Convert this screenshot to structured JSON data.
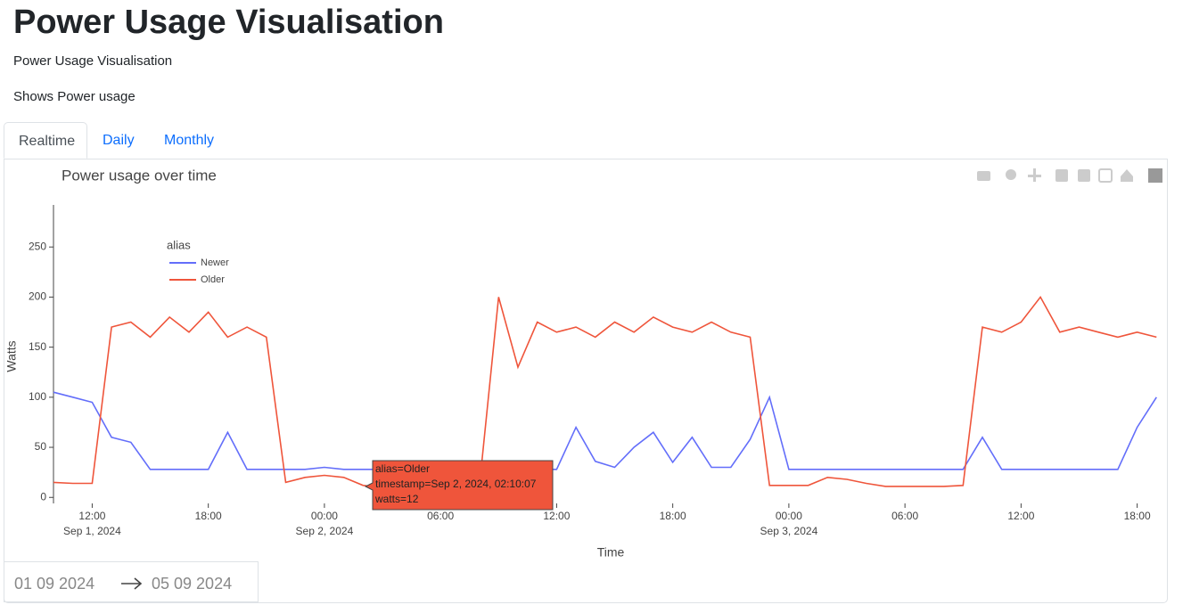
{
  "header": {
    "title": "Power Usage Visualisation",
    "subtitle": "Power Usage Visualisation",
    "description": "Shows Power usage"
  },
  "tabs": [
    "Realtime",
    "Daily",
    "Monthly"
  ],
  "date_range": {
    "start": "01 09 2024",
    "end": "05 09 2024"
  },
  "chart_data": {
    "type": "line",
    "title": "Power usage over time",
    "x_label": "Time",
    "y_label": "Watts",
    "legend_title": "alias",
    "legend": "top-left",
    "xlim": [
      "2024-09-01T10:00",
      "2024-09-03T19:35"
    ],
    "xticks": [
      {
        "value": "2024-09-01T12:00",
        "label": "12:00",
        "date": "Sep 1, 2024"
      },
      {
        "value": "2024-09-01T18:00",
        "label": "18:00"
      },
      {
        "value": "2024-09-02T00:00",
        "label": "00:00",
        "date": "Sep 2, 2024"
      },
      {
        "value": "2024-09-02T06:00",
        "label": "06:00"
      },
      {
        "value": "2024-09-02T12:00",
        "label": "12:00"
      },
      {
        "value": "2024-09-02T18:00",
        "label": "18:00"
      },
      {
        "value": "2024-09-03T00:00",
        "label": "00:00",
        "date": "Sep 3, 2024"
      },
      {
        "value": "2024-09-03T06:00",
        "label": "06:00"
      },
      {
        "value": "2024-09-03T12:00",
        "label": "12:00"
      },
      {
        "value": "2024-09-03T18:00",
        "label": "18:00"
      }
    ],
    "ylim": [
      -6,
      292
    ],
    "yticks": [
      0,
      50,
      100,
      150,
      200,
      250
    ],
    "grid": false,
    "x": [
      "2024-09-01T10:00",
      "2024-09-01T11:00",
      "2024-09-01T12:00",
      "2024-09-01T13:00",
      "2024-09-01T14:00",
      "2024-09-01T15:00",
      "2024-09-01T16:00",
      "2024-09-01T17:00",
      "2024-09-01T18:00",
      "2024-09-01T19:00",
      "2024-09-01T20:00",
      "2024-09-01T21:00",
      "2024-09-01T22:00",
      "2024-09-01T23:00",
      "2024-09-02T00:00",
      "2024-09-02T01:00",
      "2024-09-02T02:00",
      "2024-09-02T03:00",
      "2024-09-02T04:00",
      "2024-09-02T05:00",
      "2024-09-02T06:00",
      "2024-09-02T07:00",
      "2024-09-02T08:00",
      "2024-09-02T09:00",
      "2024-09-02T10:00",
      "2024-09-02T11:00",
      "2024-09-02T12:00",
      "2024-09-02T13:00",
      "2024-09-02T14:00",
      "2024-09-02T15:00",
      "2024-09-02T16:00",
      "2024-09-02T17:00",
      "2024-09-02T18:00",
      "2024-09-02T19:00",
      "2024-09-02T20:00",
      "2024-09-02T21:00",
      "2024-09-02T22:00",
      "2024-09-02T23:00",
      "2024-09-03T00:00",
      "2024-09-03T01:00",
      "2024-09-03T02:00",
      "2024-09-03T03:00",
      "2024-09-03T04:00",
      "2024-09-03T05:00",
      "2024-09-03T06:00",
      "2024-09-03T07:00",
      "2024-09-03T08:00",
      "2024-09-03T09:00",
      "2024-09-03T10:00",
      "2024-09-03T11:00",
      "2024-09-03T12:00",
      "2024-09-03T13:00",
      "2024-09-03T14:00",
      "2024-09-03T15:00",
      "2024-09-03T16:00",
      "2024-09-03T17:00",
      "2024-09-03T18:00",
      "2024-09-03T19:00"
    ],
    "series": [
      {
        "name": "Newer",
        "color": "#636efa",
        "values": [
          105,
          100,
          95,
          60,
          55,
          28,
          28,
          28,
          28,
          65,
          28,
          28,
          28,
          28,
          30,
          28,
          28,
          28,
          28,
          28,
          28,
          28,
          28,
          28,
          28,
          28,
          28,
          70,
          36,
          30,
          50,
          65,
          35,
          60,
          30,
          30,
          58,
          100,
          28,
          28,
          28,
          28,
          28,
          28,
          28,
          28,
          28,
          28,
          60,
          28,
          28,
          28,
          28,
          28,
          28,
          28,
          70,
          100
        ]
      },
      {
        "name": "Older",
        "color": "#ef553b",
        "values": [
          15,
          14,
          14,
          170,
          175,
          160,
          180,
          165,
          185,
          160,
          170,
          160,
          15,
          20,
          22,
          20,
          12,
          10,
          10,
          10,
          10,
          10,
          10,
          200,
          130,
          175,
          165,
          170,
          160,
          175,
          165,
          180,
          170,
          165,
          175,
          165,
          160,
          12,
          12,
          12,
          20,
          18,
          14,
          11,
          11,
          11,
          11,
          12,
          170,
          165,
          175,
          200,
          165,
          170,
          165,
          160,
          165,
          160
        ]
      }
    ],
    "tooltip": [
      "alias=Older",
      "timestamp=Sep 2, 2024, 02:10:07",
      "watts=12"
    ]
  }
}
